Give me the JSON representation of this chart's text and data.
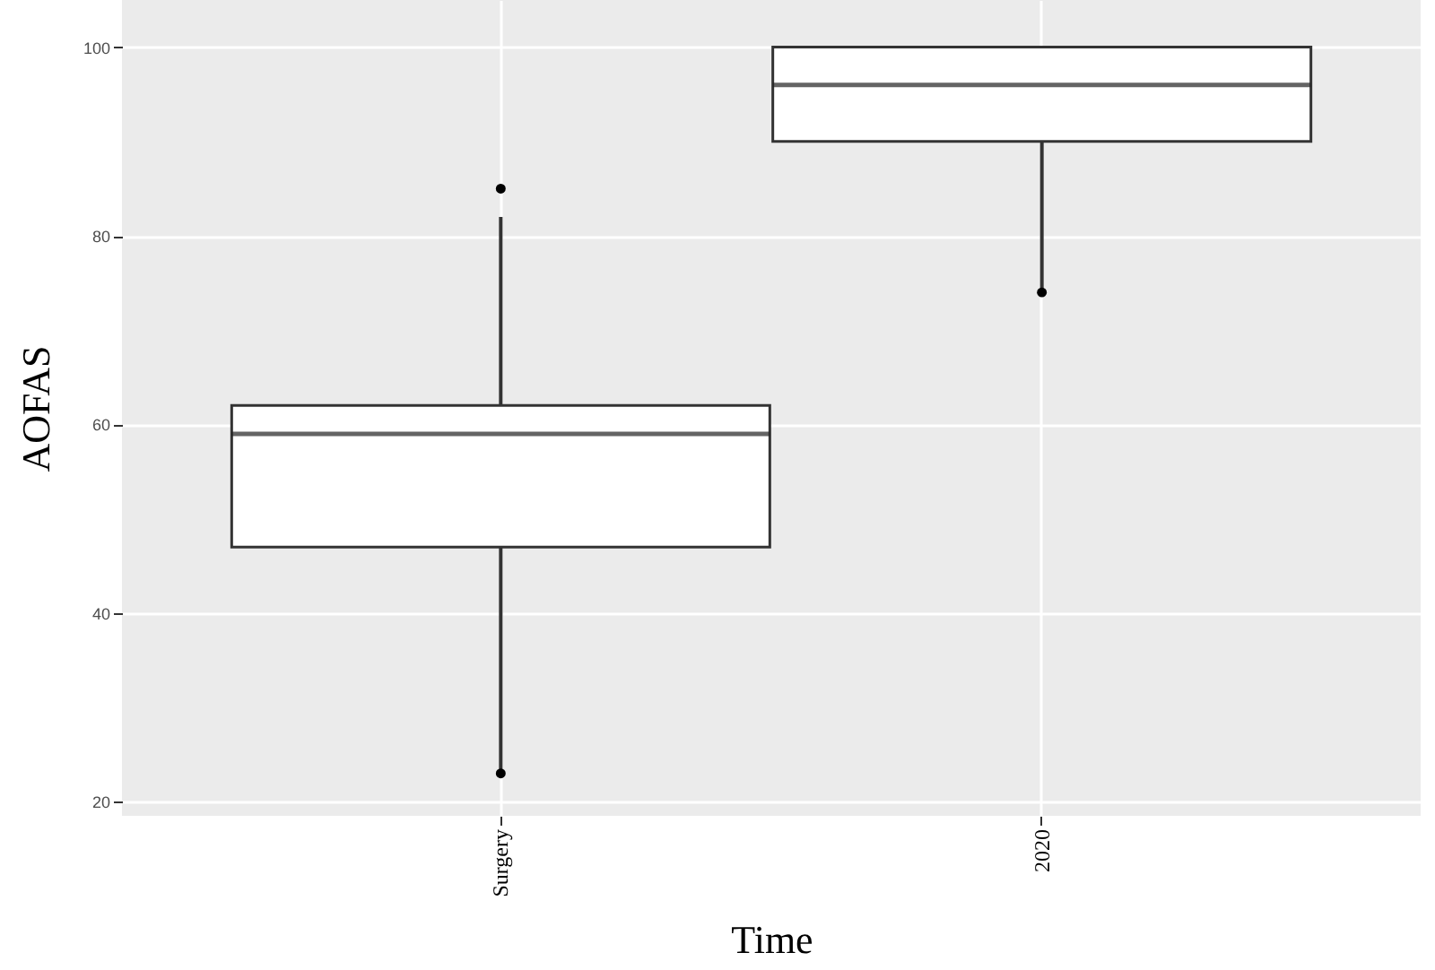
{
  "chart_data": {
    "type": "box",
    "xlabel": "Time",
    "ylabel": "AOFAS",
    "categories": [
      "Surgery",
      "2020"
    ],
    "boxes": [
      {
        "low": 23,
        "q1": 47,
        "median": 59,
        "q3": 62,
        "high": 82,
        "outliers": [
          85,
          23
        ]
      },
      {
        "low": 74,
        "q1": 90,
        "median": 96,
        "q3": 100,
        "high": 100,
        "outliers": [
          74
        ]
      }
    ],
    "ylim": [
      18.5,
      105
    ],
    "yticks": [
      20,
      40,
      60,
      80,
      100
    ],
    "grid": true
  }
}
